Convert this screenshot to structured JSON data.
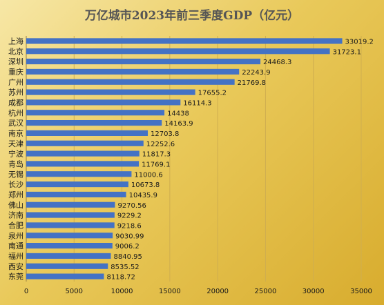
{
  "chart_data": {
    "type": "bar",
    "orientation": "horizontal",
    "title": "万亿城市2023年前三季度GDP（亿元）",
    "categories": [
      "上海",
      "北京",
      "深圳",
      "重庆",
      "广州",
      "苏州",
      "成都",
      "杭州",
      "武汉",
      "南京",
      "天津",
      "宁波",
      "青岛",
      "无锡",
      "长沙",
      "郑州",
      "佛山",
      "济南",
      "合肥",
      "泉州",
      "南通",
      "福州",
      "西安",
      "东莞"
    ],
    "values": [
      33019.2,
      31723.1,
      24468.3,
      22243.9,
      21769.8,
      17655.2,
      16114.3,
      14438,
      14163.9,
      12703.8,
      12252.6,
      11817.3,
      11769.1,
      11000.6,
      10673.8,
      10435.9,
      9270.56,
      9229.2,
      9218.6,
      9030.99,
      9006.2,
      8840.95,
      8535.52,
      8118.72
    ],
    "value_labels": [
      "33019.2",
      "31723.1",
      "24468.3",
      "22243.9",
      "21769.8",
      "17655.2",
      "16114.3",
      "14438",
      "14163.9",
      "12703.8",
      "12252.6",
      "11817.3",
      "11769.1",
      "11000.6",
      "10673.8",
      "10435.9",
      "9270.56",
      "9229.2",
      "9218.6",
      "9030.99",
      "9006.2",
      "8840.95",
      "8535.52",
      "8118.72"
    ],
    "xlim": [
      0,
      35000
    ],
    "x_ticks": [
      "0",
      "5000",
      "10000",
      "15000",
      "20000",
      "25000",
      "30000",
      "35000"
    ],
    "grid": true,
    "bar_color": "#4472c4",
    "background_colors": [
      "#f7e7a6",
      "#d8ac2e"
    ],
    "xlabel": "",
    "ylabel": ""
  }
}
